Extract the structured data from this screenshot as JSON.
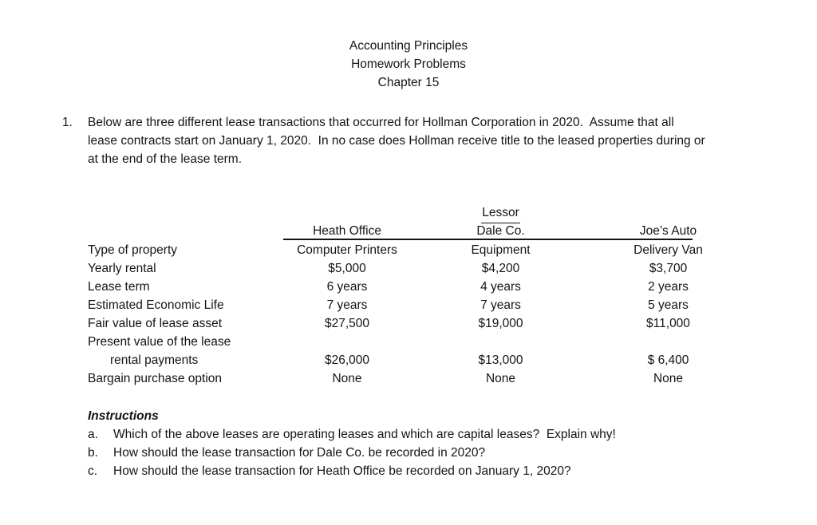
{
  "title": {
    "line1": "Accounting Principles",
    "line2": "Homework Problems",
    "line3": "Chapter 15"
  },
  "problem": {
    "number": "1.",
    "lines": [
      "Below are three different lease transactions that occurred for Hollman Corporation in 2020.  Assume that all",
      "lease contracts start on January 1, 2020.  In no case does Hollman receive title to the leased properties during or",
      "at the end of the lease term."
    ]
  },
  "table": {
    "group_header": "Lessor",
    "columns": [
      "Heath Office",
      "Dale Co.",
      "Joe’s Auto"
    ],
    "rows": [
      {
        "label": "Type of property",
        "heath_office": "Computer Printers",
        "dale_co": "Equipment",
        "joes_auto": "Delivery Van"
      },
      {
        "label": "Yearly rental",
        "heath_office": "$5,000",
        "dale_co": "$4,200",
        "joes_auto": "$3,700"
      },
      {
        "label": "Lease term",
        "heath_office": "6 years",
        "dale_co": "4 years",
        "joes_auto": "2 years"
      },
      {
        "label": "Estimated Economic Life",
        "heath_office": "7 years",
        "dale_co": "7 years",
        "joes_auto": "5 years"
      },
      {
        "label": "Fair value of lease asset",
        "heath_office": "$27,500",
        "dale_co": "$19,000",
        "joes_auto": "$11,000"
      },
      {
        "label": "Present value of the lease",
        "heath_office": "",
        "dale_co": "",
        "joes_auto": ""
      },
      {
        "label": "rental payments",
        "heath_office": "$26,000",
        "dale_co": "$13,000",
        "joes_auto": "$ 6,400"
      },
      {
        "label": "Bargain purchase option",
        "heath_office": "None",
        "dale_co": "None",
        "joes_auto": "None"
      }
    ]
  },
  "instructions": {
    "heading": "Instructions",
    "items": [
      {
        "marker": "a.",
        "text": "Which of the above leases are operating leases and which are capital leases?  Explain why!"
      },
      {
        "marker": "b.",
        "text": "How should the lease transaction for Dale Co. be recorded in 2020?"
      },
      {
        "marker": "c.",
        "text": "How should the lease transaction for Heath Office be recorded on January 1, 2020?"
      }
    ]
  }
}
